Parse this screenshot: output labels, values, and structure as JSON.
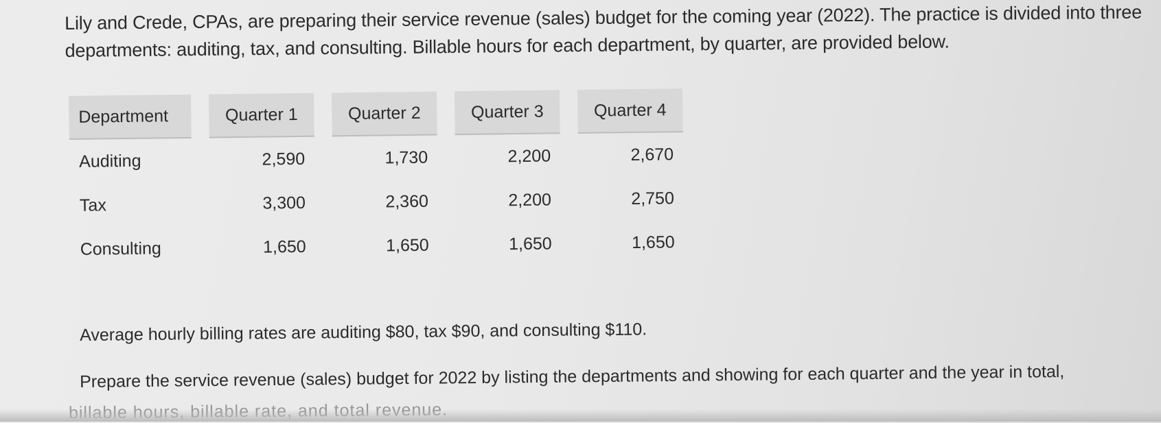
{
  "intro": "Lily and Crede, CPAs, are preparing their service revenue (sales) budget for the coming year (2022). The practice is divided into three departments: auditing, tax, and consulting. Billable hours for each department, by quarter, are provided below.",
  "table": {
    "headers": [
      "Department",
      "Quarter 1",
      "Quarter 2",
      "Quarter 3",
      "Quarter 4"
    ],
    "rows": [
      [
        "Auditing",
        "2,590",
        "1,730",
        "2,200",
        "2,670"
      ],
      [
        "Tax",
        "3,300",
        "2,360",
        "2,200",
        "2,750"
      ],
      [
        "Consulting",
        "1,650",
        "1,650",
        "1,650",
        "1,650"
      ]
    ]
  },
  "rates_text": "Average hourly billing rates are auditing $80, tax $90, and consulting $110.",
  "instruction_text": "Prepare the service revenue (sales) budget for 2022 by listing the departments and showing for each quarter and the year in total,",
  "cutoff_text": "billable hours, billable rate, and total revenue."
}
